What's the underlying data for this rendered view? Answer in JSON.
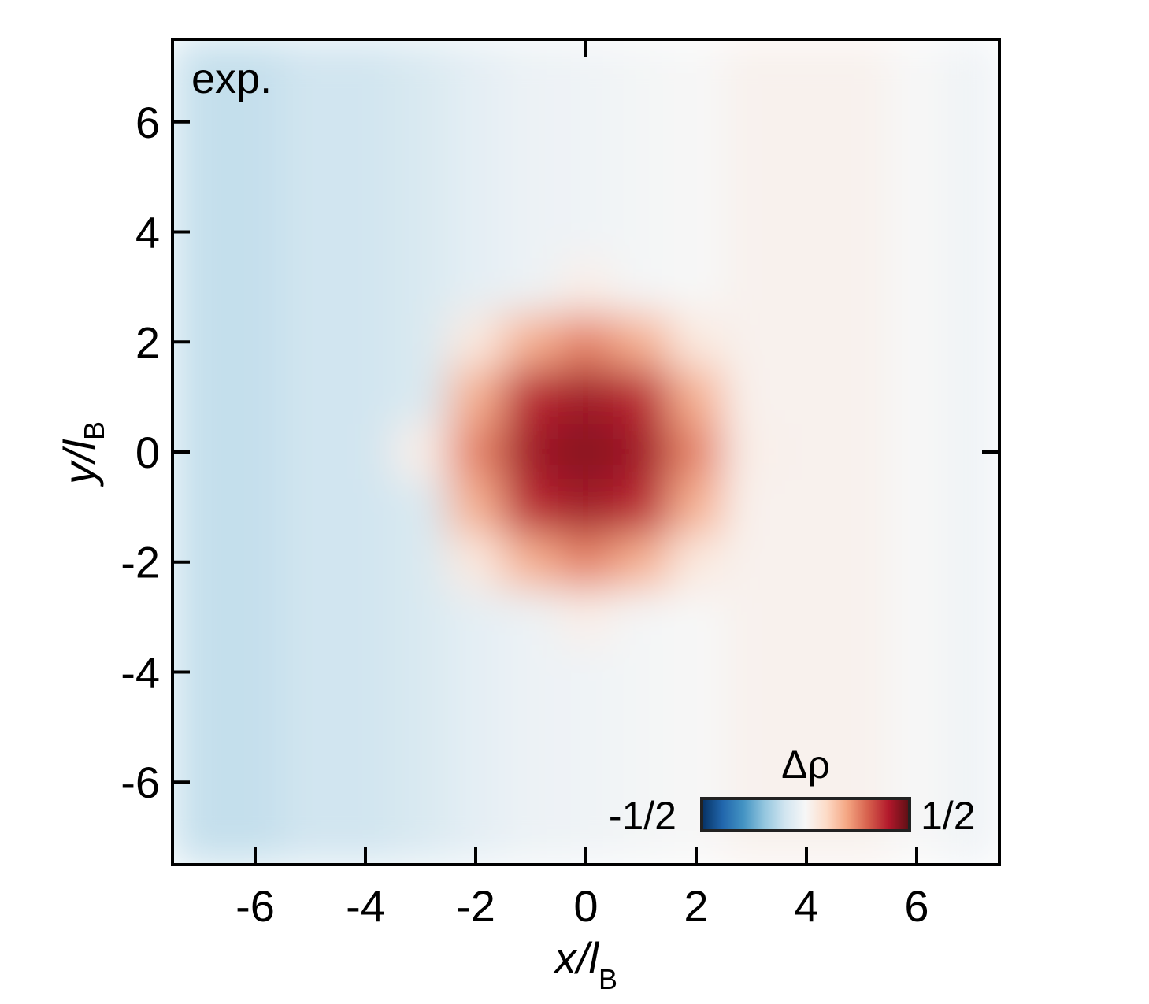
{
  "chart_data": {
    "type": "heatmap",
    "annotation": "exp.",
    "xlabel": "x/l",
    "xlabel_subscript": "B",
    "ylabel": "y/l",
    "ylabel_subscript": "B",
    "xlim": [
      -7.5,
      7.5
    ],
    "ylim": [
      -7.5,
      7.5
    ],
    "xticks": [
      -6,
      -4,
      -2,
      0,
      2,
      4,
      6
    ],
    "yticks": [
      -6,
      -4,
      -2,
      0,
      2,
      4,
      6
    ],
    "x": [
      -7,
      -6,
      -5,
      -4,
      -3,
      -2,
      -1,
      0,
      1,
      2,
      3,
      4,
      5,
      6,
      7
    ],
    "y": [
      7,
      6,
      5,
      4,
      3,
      2,
      1,
      0,
      -1,
      -2,
      -3,
      -4,
      -5,
      -6,
      -7
    ],
    "z": [
      [
        -0.12,
        -0.12,
        -0.1,
        -0.1,
        -0.08,
        -0.05,
        -0.03,
        -0.02,
        -0.01,
        0,
        0.02,
        0.02,
        0.02,
        0,
        -0.02
      ],
      [
        -0.12,
        -0.12,
        -0.1,
        -0.1,
        -0.08,
        -0.05,
        -0.03,
        -0.02,
        -0.01,
        0,
        0.02,
        0.02,
        0.02,
        0,
        -0.02
      ],
      [
        -0.12,
        -0.12,
        -0.1,
        -0.1,
        -0.08,
        -0.05,
        -0.03,
        -0.02,
        -0.01,
        0,
        0.02,
        0.02,
        0.02,
        0,
        -0.02
      ],
      [
        -0.12,
        -0.12,
        -0.1,
        -0.1,
        -0.08,
        -0.05,
        -0.03,
        -0.02,
        -0.01,
        0,
        0.02,
        0.02,
        0.02,
        0,
        -0.02
      ],
      [
        -0.12,
        -0.12,
        -0.1,
        -0.1,
        -0.08,
        -0.05,
        -0.03,
        0.03,
        -0.01,
        0,
        0.02,
        0.02,
        0.02,
        0,
        -0.02
      ],
      [
        -0.12,
        -0.12,
        -0.1,
        -0.1,
        -0.08,
        0.05,
        0.18,
        0.25,
        0.18,
        0.05,
        0.02,
        0.02,
        0.02,
        0,
        -0.02
      ],
      [
        -0.12,
        -0.12,
        -0.1,
        -0.1,
        -0.08,
        0.18,
        0.38,
        0.42,
        0.38,
        0.18,
        0.02,
        0.02,
        0.02,
        0,
        -0.02
      ],
      [
        -0.12,
        -0.12,
        -0.1,
        -0.1,
        0.03,
        0.25,
        0.42,
        0.45,
        0.42,
        0.25,
        0.03,
        0.02,
        0.02,
        0,
        -0.02
      ],
      [
        -0.12,
        -0.12,
        -0.1,
        -0.1,
        -0.08,
        0.18,
        0.38,
        0.42,
        0.38,
        0.18,
        0.02,
        0.02,
        0.02,
        0,
        -0.02
      ],
      [
        -0.12,
        -0.12,
        -0.1,
        -0.1,
        -0.08,
        0.05,
        0.18,
        0.25,
        0.18,
        0.05,
        0.02,
        0.02,
        0.02,
        0,
        -0.02
      ],
      [
        -0.12,
        -0.12,
        -0.1,
        -0.1,
        -0.08,
        -0.05,
        -0.03,
        0.03,
        -0.01,
        0,
        0.02,
        0.02,
        0.02,
        0,
        -0.02
      ],
      [
        -0.12,
        -0.12,
        -0.1,
        -0.1,
        -0.08,
        -0.05,
        -0.03,
        -0.02,
        -0.01,
        0,
        0.02,
        0.02,
        0.02,
        0,
        -0.02
      ],
      [
        -0.12,
        -0.12,
        -0.1,
        -0.1,
        -0.08,
        -0.05,
        -0.03,
        -0.02,
        -0.01,
        0,
        0.02,
        0.02,
        0.02,
        0,
        -0.02
      ],
      [
        -0.12,
        -0.12,
        -0.1,
        -0.1,
        -0.08,
        -0.05,
        -0.03,
        -0.02,
        -0.01,
        0,
        0.02,
        0.02,
        0.02,
        0,
        -0.02
      ],
      [
        -0.12,
        -0.12,
        -0.1,
        -0.1,
        -0.08,
        -0.05,
        -0.03,
        -0.02,
        -0.01,
        0,
        0.02,
        0.02,
        0.02,
        0,
        -0.02
      ]
    ],
    "colorbar": {
      "title": "Δρ",
      "lim": [
        -0.5,
        0.5
      ],
      "ticks": [
        {
          "value": -0.5,
          "label": "-1/2"
        },
        {
          "value": 0.5,
          "label": "1/2"
        }
      ]
    },
    "colormap": [
      "#053061",
      "#2166ac",
      "#4393c3",
      "#92c5de",
      "#d1e5f0",
      "#f7f7f7",
      "#fddbc7",
      "#f4a582",
      "#d6604d",
      "#b2182b",
      "#5a0f14"
    ]
  }
}
